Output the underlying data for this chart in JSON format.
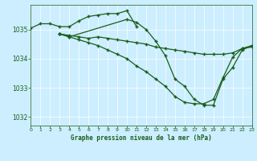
{
  "bg_color": "#cceeff",
  "line_color": "#1a5c1a",
  "marker": "+",
  "title": "Graphe pression niveau de la mer (hPa)",
  "xlim": [
    0,
    23
  ],
  "ylim": [
    1031.7,
    1035.85
  ],
  "yticks": [
    1032,
    1033,
    1034,
    1035
  ],
  "xticks": [
    0,
    1,
    2,
    3,
    4,
    5,
    6,
    7,
    8,
    9,
    10,
    11,
    12,
    13,
    14,
    15,
    16,
    17,
    18,
    19,
    20,
    21,
    22,
    23
  ],
  "series": [
    {
      "x": [
        0,
        1,
        2,
        3,
        4,
        5,
        6,
        7,
        8,
        9,
        10,
        11
      ],
      "y": [
        1035.05,
        1035.2,
        1035.2,
        1035.1,
        1035.1,
        1035.3,
        1035.45,
        1035.5,
        1035.55,
        1035.55,
        1035.65,
        1035.1
      ]
    },
    {
      "x": [
        3,
        4,
        5,
        6,
        7,
        8,
        9,
        10,
        11,
        12,
        13,
        14,
        15,
        16,
        17,
        18,
        19,
        20,
        21,
        22,
        23
      ],
      "y": [
        1034.85,
        1034.8,
        1034.75,
        1034.7,
        1034.75,
        1034.7,
        1034.65,
        1034.6,
        1034.55,
        1034.5,
        1034.4,
        1034.35,
        1034.3,
        1034.25,
        1034.2,
        1034.15,
        1034.15,
        1034.15,
        1034.2,
        1034.35,
        1034.4
      ]
    },
    {
      "x": [
        3,
        4,
        5,
        6,
        7,
        8,
        9,
        10,
        11,
        12,
        13,
        14,
        15,
        16,
        17,
        18,
        19,
        20,
        21,
        22,
        23
      ],
      "y": [
        1034.85,
        1034.75,
        1034.65,
        1034.55,
        1034.45,
        1034.3,
        1034.15,
        1034.0,
        1033.75,
        1033.55,
        1033.3,
        1033.05,
        1032.7,
        1032.5,
        1032.45,
        1032.45,
        1032.6,
        1033.35,
        1034.05,
        1034.35,
        1034.45
      ]
    },
    {
      "x": [
        3,
        4,
        10,
        11,
        12,
        13,
        14,
        15,
        16,
        17,
        18,
        19,
        20,
        21,
        22,
        23
      ],
      "y": [
        1034.85,
        1034.75,
        1035.35,
        1035.25,
        1035.0,
        1034.6,
        1034.1,
        1033.3,
        1033.05,
        1032.6,
        1032.4,
        1032.4,
        1033.3,
        1033.7,
        1034.3,
        1034.45
      ]
    }
  ]
}
